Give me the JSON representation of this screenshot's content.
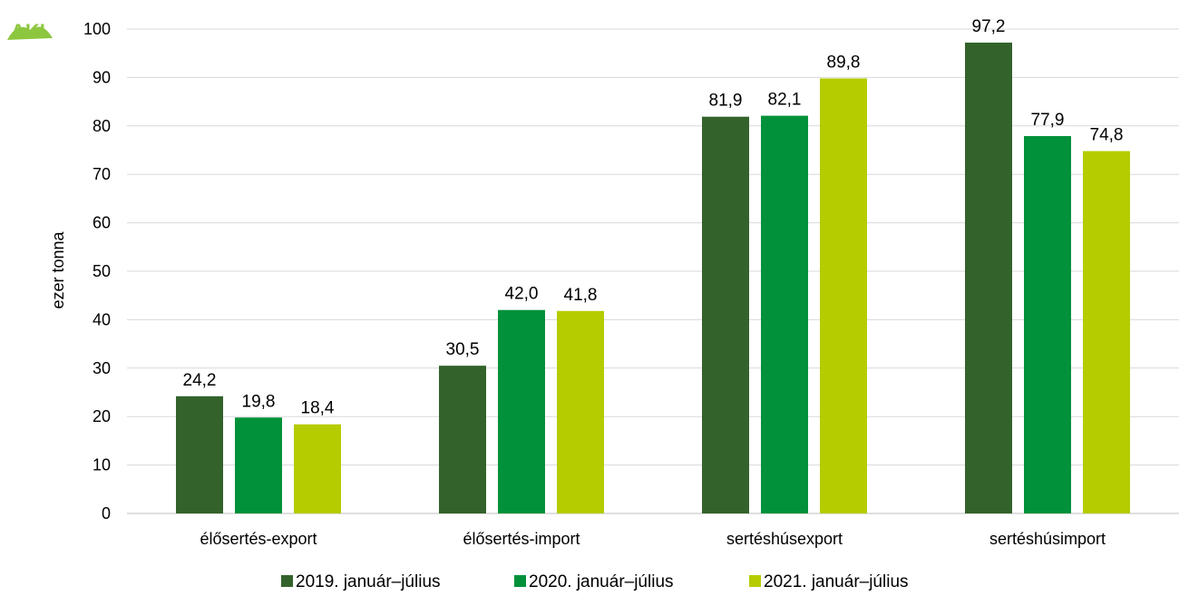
{
  "logo": {
    "text": "AKI"
  },
  "chart_data": {
    "type": "bar",
    "title": "",
    "xlabel": "",
    "ylabel": "ezer tonna",
    "ylim": [
      0,
      100
    ],
    "yticks": [
      0,
      10,
      20,
      30,
      40,
      50,
      60,
      70,
      80,
      90,
      100
    ],
    "grid": true,
    "legend_position": "bottom",
    "categories": [
      "élősertés-export",
      "élősertés-import",
      "sertéshúsexport",
      "sertéshúsimport"
    ],
    "series": [
      {
        "name": "2019. január–július",
        "color": "#33632b",
        "values": [
          24.2,
          30.5,
          81.9,
          97.2
        ],
        "labels": [
          "24,2",
          "30,5",
          "81,9",
          "97,2"
        ]
      },
      {
        "name": "2020. január–július",
        "color": "#00913a",
        "values": [
          19.8,
          42.0,
          82.1,
          77.9
        ],
        "labels": [
          "19,8",
          "42,0",
          "82,1",
          "77,9"
        ]
      },
      {
        "name": "2021. január–július",
        "color": "#b5cc00",
        "values": [
          18.4,
          41.8,
          89.8,
          74.8
        ],
        "labels": [
          "18,4",
          "41,8",
          "89,8",
          "74,8"
        ]
      }
    ]
  }
}
